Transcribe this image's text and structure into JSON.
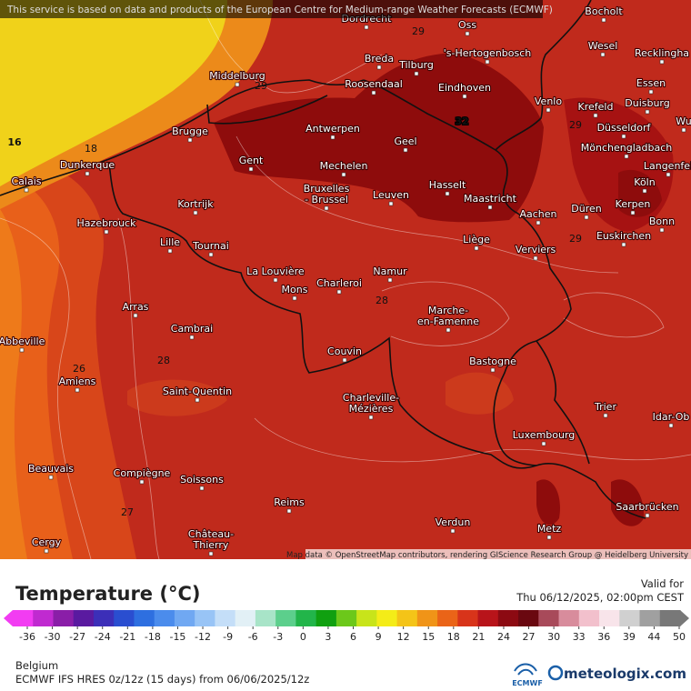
{
  "header": {
    "notice": "This service is based on data and products of the European Centre for Medium-range Weather Forecasts (ECMWF)"
  },
  "map": {
    "cities": [
      [
        "Dordrecht"
      ],
      [
        "Oss"
      ],
      [
        "Bocholt"
      ],
      [
        "'s-Hertogenbosch"
      ],
      [
        "Wesel"
      ],
      [
        "Recklingha"
      ],
      [
        "Breda"
      ],
      [
        "Tilburg"
      ],
      [
        "Middelburg"
      ],
      [
        "Roosendaal"
      ],
      [
        "Eindhoven"
      ],
      [
        "Essen"
      ],
      [
        "Venlo"
      ],
      [
        "Krefeld"
      ],
      [
        "Duisburg"
      ],
      [
        "Brugge"
      ],
      [
        "Antwerpen"
      ],
      [
        "Düsseldorf"
      ],
      [
        "Wu"
      ],
      [
        "Geel"
      ],
      [
        "Mönchengladbach"
      ],
      [
        "Dunkerque"
      ],
      [
        "Gent"
      ],
      [
        "Mechelen"
      ],
      [
        "Hasselt"
      ],
      [
        "Langenfel"
      ],
      [
        "Calais"
      ],
      [
        "Köln"
      ],
      [
        "Bruxelles",
        "- Brussel"
      ],
      [
        "Leuven"
      ],
      [
        "Maastricht"
      ],
      [
        "Kortrijk"
      ],
      [
        "Düren"
      ],
      [
        "Kerpen"
      ],
      [
        "Aachen"
      ],
      [
        "Bonn"
      ],
      [
        "Hazebrouck"
      ],
      [
        "Lille"
      ],
      [
        "Tournai"
      ],
      [
        "Liège"
      ],
      [
        "Verviers"
      ],
      [
        "Euskirchen"
      ],
      [
        "La Louvière"
      ],
      [
        "Mons"
      ],
      [
        "Charleroi"
      ],
      [
        "Namur"
      ],
      [
        "Arras"
      ],
      [
        "Marche-",
        "en-Famenne"
      ],
      [
        "Cambrai"
      ],
      [
        "Abbeville"
      ],
      [
        "Couvin"
      ],
      [
        "Bastogne"
      ],
      [
        "Amiens"
      ],
      [
        "Saint-Quentin"
      ],
      [
        "Charleville-",
        "Mézières"
      ],
      [
        "Trier"
      ],
      [
        "Idar-Ob"
      ],
      [
        "Luxembourg"
      ],
      [
        "Beauvais"
      ],
      [
        "Compiègne"
      ],
      [
        "Soissons"
      ],
      [
        "Saarbrücken"
      ],
      [
        "Reims"
      ],
      [
        "Verdun"
      ],
      [
        "Metz"
      ],
      [
        "Château-",
        "Thierry"
      ],
      [
        "Cergy"
      ]
    ],
    "contour_labels": [
      29,
      29,
      18,
      16,
      32,
      29,
      29,
      28,
      28,
      26,
      27
    ],
    "attribution": "Map data © OpenStreetMap contributors, rendering GIScience Research Group @ Heidelberg University"
  },
  "legend": {
    "title": "Temperature (°C)",
    "valid_label": "Valid for",
    "valid_time": "Thu 06/12/2025, 02:00pm CEST",
    "ticks": [
      -36,
      -30,
      -27,
      -24,
      -21,
      -18,
      -15,
      -12,
      -9,
      -6,
      -3,
      0,
      3,
      6,
      9,
      12,
      15,
      18,
      21,
      24,
      27,
      30,
      33,
      36,
      39,
      44,
      50
    ],
    "colors": [
      "#f23cf2",
      "#c02ad0",
      "#8a1ea8",
      "#5a1aa0",
      "#3c2fb8",
      "#2a4ed0",
      "#2e6fe0",
      "#4b8cec",
      "#70a8f2",
      "#98c4f6",
      "#c4def8",
      "#e2f0f6",
      "#a8e4c8",
      "#5ccf8c",
      "#22b54a",
      "#10a010",
      "#6cc81a",
      "#c8e41a",
      "#f4ec18",
      "#f4c418",
      "#f09418",
      "#ea6418",
      "#d8341a",
      "#b8141a",
      "#8c0a12",
      "#6a0810",
      "#a84a5a",
      "#d88c9c",
      "#f2c0cc",
      "#f8e4ea",
      "#d0d0d0",
      "#a0a0a0",
      "#787878"
    ]
  },
  "footer": {
    "region": "Belgium",
    "model": "ECMWF IFS HRES 0z/12z (15 days) from 06/06/2025/12z",
    "logo_ecmwf": "ECMWF",
    "logo_site": "meteologix.com"
  }
}
